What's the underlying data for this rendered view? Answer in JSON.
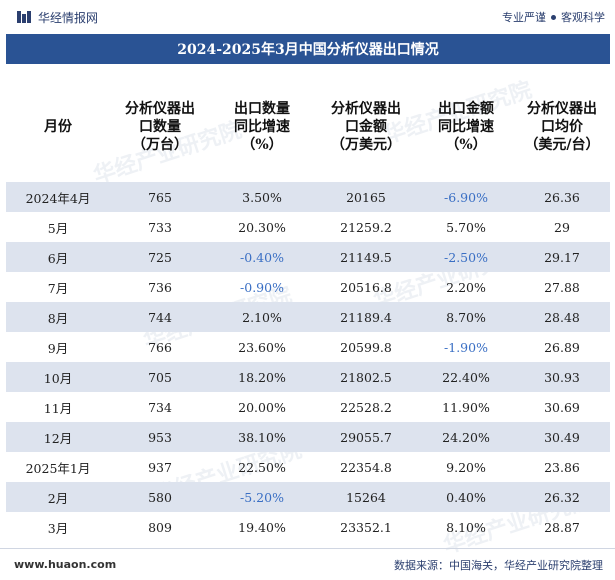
{
  "brand": {
    "name": "华经情报网",
    "slogan_left": "专业严谨",
    "slogan_right": "客观科学"
  },
  "title": "2024-2025年3月中国分析仪器出口情况",
  "colors": {
    "header_bg": "#2a5394",
    "row_alt": "#dde3ee",
    "negative": "#3a6fc4"
  },
  "table": {
    "headers": [
      "月份",
      "分析仪器出口数量（万台）",
      "出口数量同比增速（%）",
      "分析仪器出口金额（万美元）",
      "出口金额同比增速（%）",
      "分析仪器出口均价（美元/台）"
    ],
    "rows": [
      [
        "2024年4月",
        "765",
        "3.50%",
        "20165",
        "-6.90%",
        "26.36"
      ],
      [
        "5月",
        "733",
        "20.30%",
        "21259.2",
        "5.70%",
        "29"
      ],
      [
        "6月",
        "725",
        "-0.40%",
        "21149.5",
        "-2.50%",
        "29.17"
      ],
      [
        "7月",
        "736",
        "-0.90%",
        "20516.8",
        "2.20%",
        "27.88"
      ],
      [
        "8月",
        "744",
        "2.10%",
        "21189.4",
        "8.70%",
        "28.48"
      ],
      [
        "9月",
        "766",
        "23.60%",
        "20599.8",
        "-1.90%",
        "26.89"
      ],
      [
        "10月",
        "705",
        "18.20%",
        "21802.5",
        "22.40%",
        "30.93"
      ],
      [
        "11月",
        "734",
        "20.00%",
        "22528.2",
        "11.90%",
        "30.69"
      ],
      [
        "12月",
        "953",
        "38.10%",
        "29055.7",
        "24.20%",
        "30.49"
      ],
      [
        "2025年1月",
        "937",
        "22.50%",
        "22354.8",
        "9.20%",
        "23.86"
      ],
      [
        "2月",
        "580",
        "-5.20%",
        "15264",
        "0.40%",
        "26.32"
      ],
      [
        "3月",
        "809",
        "19.40%",
        "23352.1",
        "8.10%",
        "28.87"
      ]
    ]
  },
  "watermark": "华经产业研究院",
  "footer": {
    "url": "www.huaon.com",
    "source": "数据来源：中国海关，华经产业研究院整理"
  }
}
